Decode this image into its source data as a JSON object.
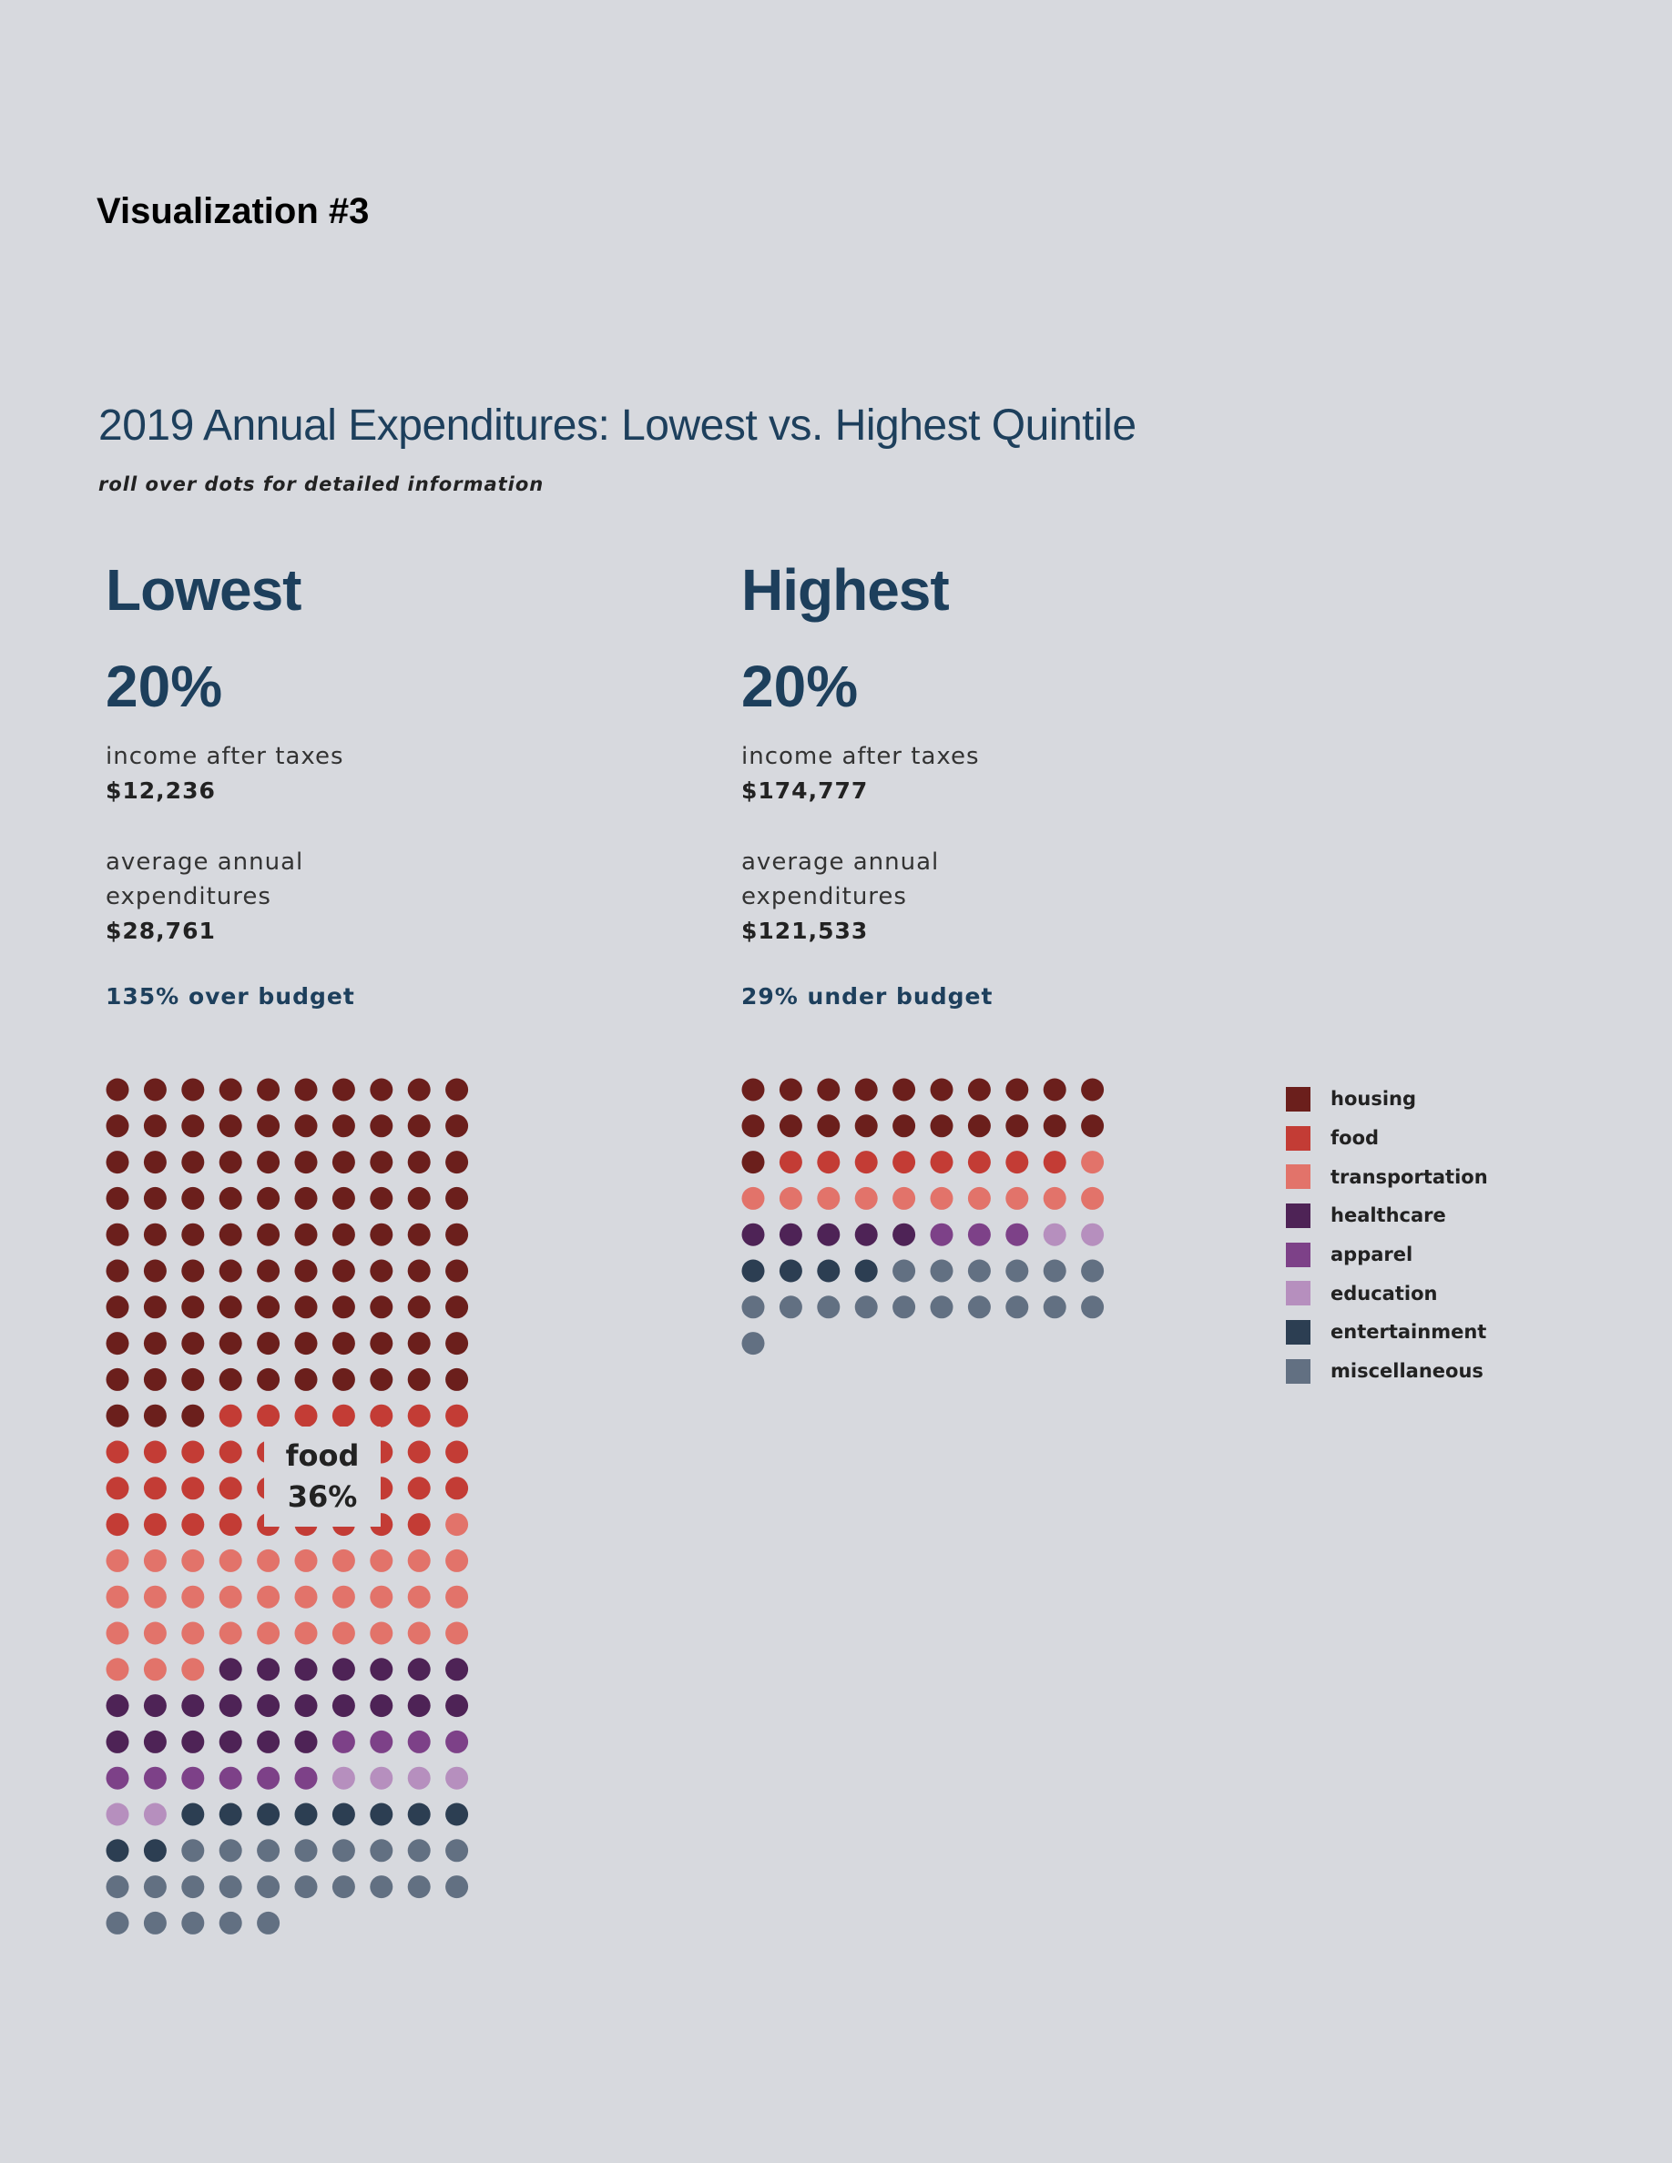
{
  "page": {
    "heading": "Visualization #3"
  },
  "chart_data": {
    "type": "waffle",
    "title": "2019 Annual Expenditures: Lowest vs. Highest Quintile",
    "subtitle": "roll over dots for detailed information",
    "categories": [
      "housing",
      "food",
      "transportation",
      "healthcare",
      "apparel",
      "education",
      "entertainment",
      "miscellaneous"
    ],
    "colors": {
      "housing": "#6b1f1c",
      "food": "#c33c35",
      "transportation": "#e2736a",
      "healthcare": "#4e2356",
      "apparel": "#7d4188",
      "education": "#b68fbe",
      "entertainment": "#2c3e52",
      "miscellaneous": "#627082"
    },
    "groups": [
      {
        "name": "Lowest",
        "percent_label": "20%",
        "income_label": "income after taxes",
        "income": "$12,236",
        "expenditure_label_1": "average annual",
        "expenditure_label_2": "expenditures",
        "expenditure": "$28,761",
        "budget_note": "135% over budget",
        "dot_counts": [
          93,
          36,
          34,
          23,
          10,
          6,
          10,
          23
        ]
      },
      {
        "name": "Highest",
        "percent_label": "20%",
        "income_label": "income after taxes",
        "income": "$174,777",
        "expenditure_label_1": "average annual",
        "expenditure_label_2": "expenditures",
        "expenditure": "$121,533",
        "budget_note": "29% under budget",
        "dot_counts": [
          21,
          8,
          11,
          5,
          3,
          2,
          4,
          17
        ]
      }
    ],
    "tooltip": {
      "category": "food",
      "value": "36%"
    }
  }
}
